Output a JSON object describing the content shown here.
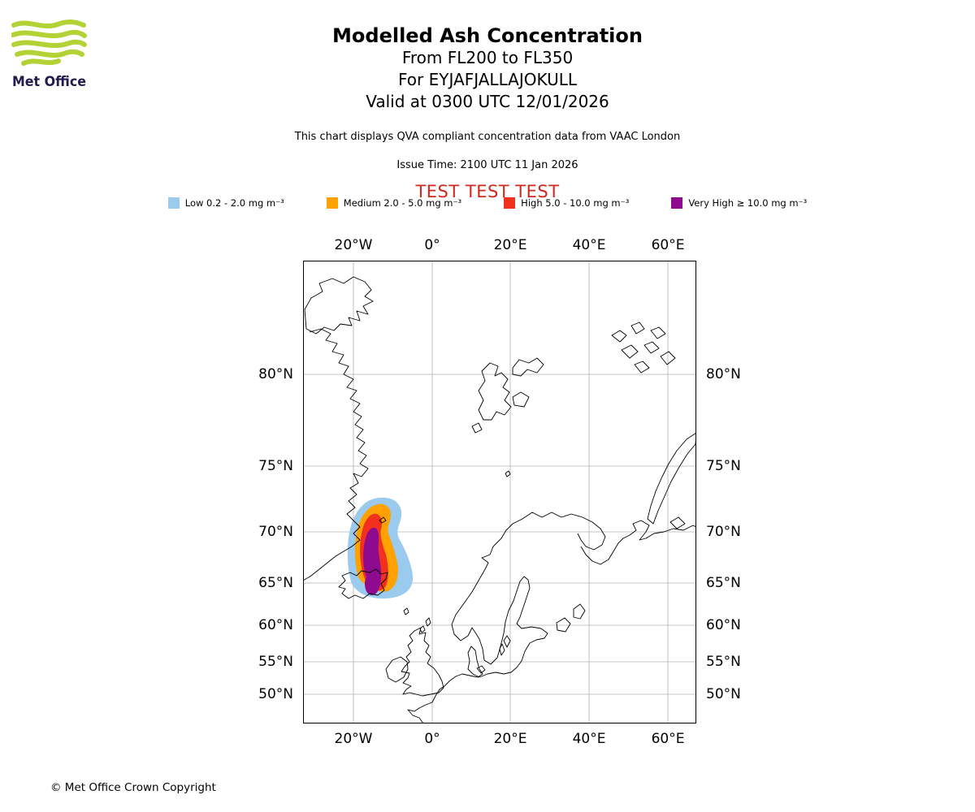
{
  "logo": {
    "brand": "Met Office",
    "wave_color": "#B2D235",
    "text_color": "#221B4E"
  },
  "header": {
    "title": "Modelled Ash Concentration",
    "subtitle_lines": [
      "From FL200 to FL350",
      "For EYJAFJALLAJOKULL",
      "Valid at 0300 UTC 12/01/2026"
    ],
    "description": "This chart displays QVA compliant concentration data from VAAC London",
    "issue_time": "Issue Time: 2100 UTC 11 Jan 2026",
    "test_banner": "TEST TEST TEST",
    "test_banner_color": "#D02820"
  },
  "legend": {
    "items": [
      {
        "name": "low",
        "label": "Low 0.2 - 2.0 mg m⁻³",
        "color": "#9ACAED"
      },
      {
        "name": "medium",
        "label": "Medium 2.0 - 5.0 mg m⁻³",
        "color": "#FFA100"
      },
      {
        "name": "high",
        "label": "High 5.0 - 10.0 mg m⁻³",
        "color": "#F1301D"
      },
      {
        "name": "very-high",
        "label": "Very High ≥ 10.0 mg m⁻³",
        "color": "#8E0A8E"
      }
    ]
  },
  "map": {
    "projection_note": "North Atlantic / Scandinavia region",
    "lon_ticks": [
      {
        "label": "20°W",
        "pct": 12.81
      },
      {
        "label": "0°",
        "pct": 32.85
      },
      {
        "label": "20°E",
        "pct": 52.69
      },
      {
        "label": "40°E",
        "pct": 72.73
      },
      {
        "label": "60°E",
        "pct": 92.77
      }
    ],
    "lat_ticks": [
      {
        "label": "80°N",
        "pct": 24.56
      },
      {
        "label": "75°N",
        "pct": 44.39
      },
      {
        "label": "70°N",
        "pct": 58.6
      },
      {
        "label": "65°N",
        "pct": 69.65
      },
      {
        "label": "60°N",
        "pct": 78.77
      },
      {
        "label": "55°N",
        "pct": 86.67
      },
      {
        "label": "50°N",
        "pct": 93.68
      }
    ]
  },
  "footer": {
    "copyright": "© Met Office Crown Copyright"
  }
}
